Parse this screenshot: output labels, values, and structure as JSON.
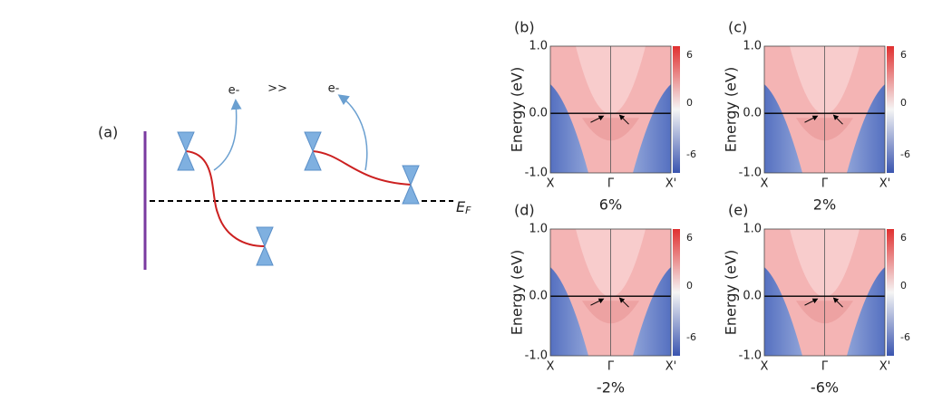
{
  "panel_a": {
    "label": "(a)",
    "electron_labels": [
      "e-",
      "e-"
    ],
    "comparison": ">>",
    "fermi_label": "E",
    "fermi_subscript": "F"
  },
  "axes": {
    "y_label": "Energy (eV)",
    "y_ticks": [
      "1.0",
      "0.0",
      "-1.0"
    ],
    "x_ticks": [
      "X",
      "Γ",
      "X'"
    ],
    "colorbar_ticks": [
      "6",
      "0",
      "-6"
    ]
  },
  "panels": [
    {
      "label": "(b)",
      "strain": "6%"
    },
    {
      "label": "(c)",
      "strain": "2%"
    },
    {
      "label": "(d)",
      "strain": "-2%"
    },
    {
      "label": "(e)",
      "strain": "-6%"
    }
  ]
}
